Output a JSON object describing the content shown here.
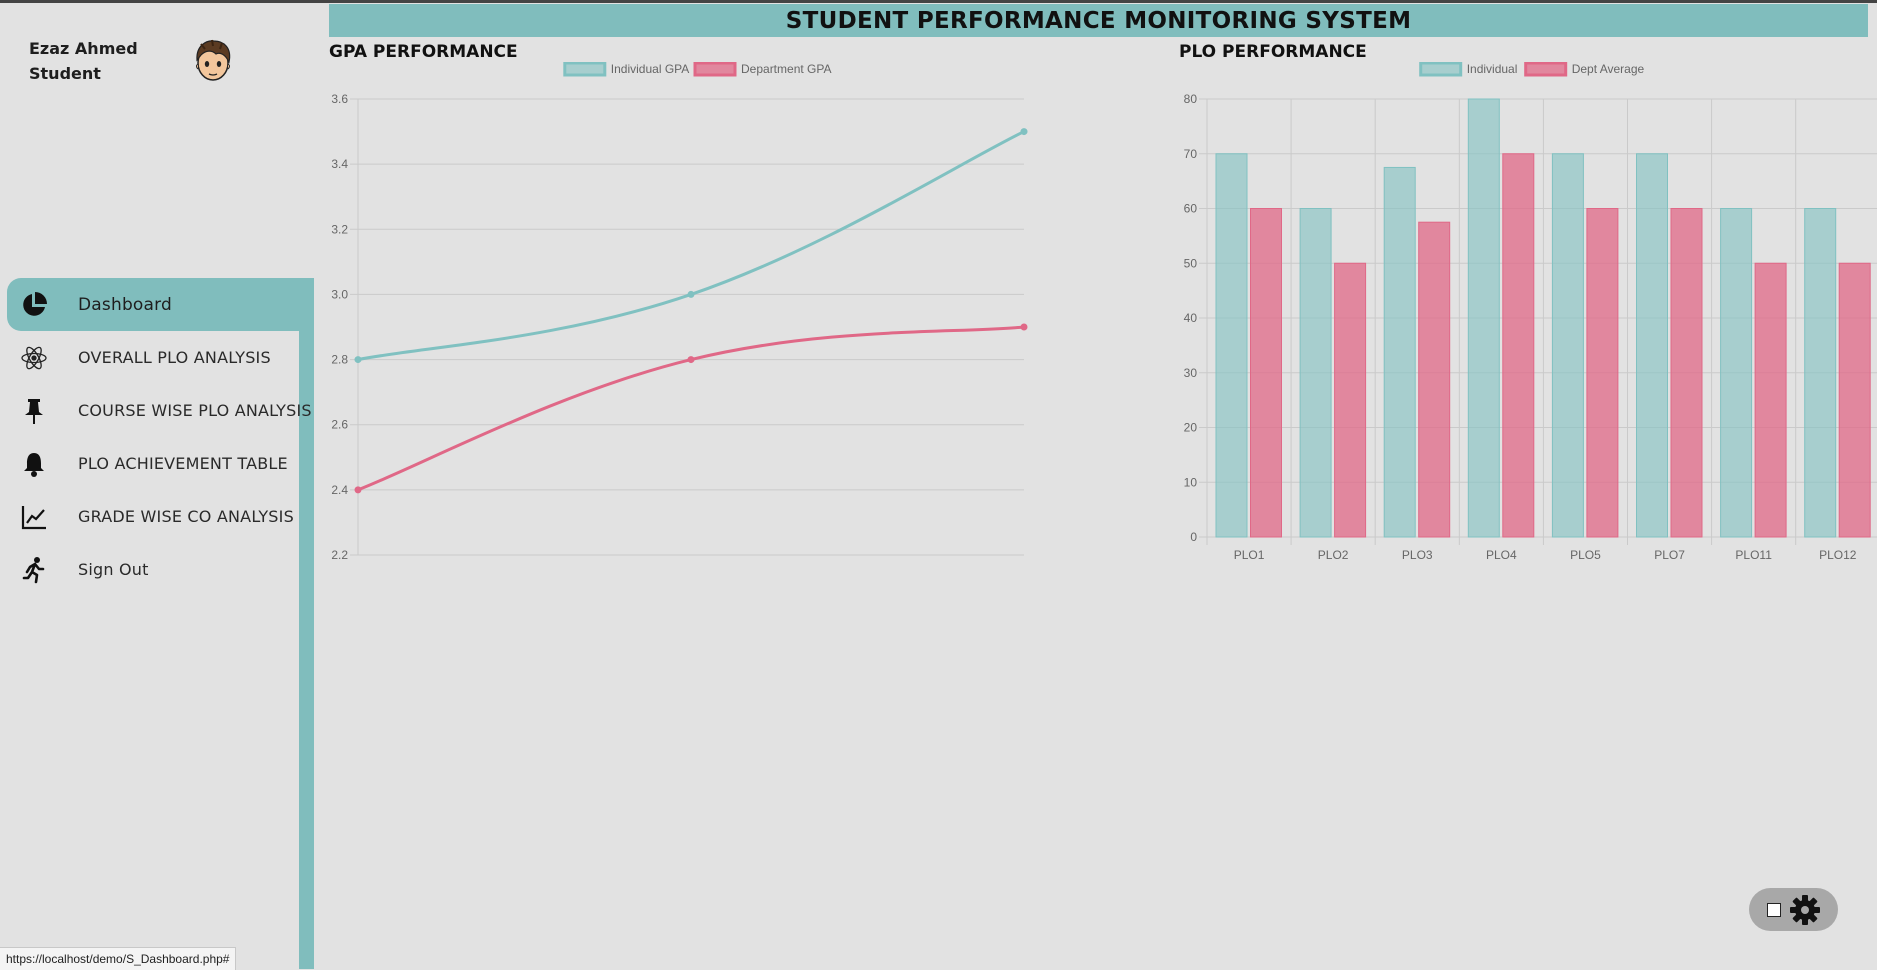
{
  "user": {
    "name": "Ezaz Ahmed",
    "role": "Student"
  },
  "header": {
    "title": "STUDENT PERFORMANCE MONITORING SYSTEM"
  },
  "sidebar": {
    "items": [
      {
        "label": "Dashboard",
        "icon": "pie-chart-icon",
        "active": true
      },
      {
        "label": "OVERALL PLO ANALYSIS",
        "icon": "atom-icon"
      },
      {
        "label": "COURSE WISE PLO ANALYSIS",
        "icon": "pushpin-icon"
      },
      {
        "label": "PLO ACHIEVEMENT TABLE",
        "icon": "bell-icon"
      },
      {
        "label": "GRADE WISE CO ANALYSIS",
        "icon": "line-chart-icon"
      },
      {
        "label": "Sign Out",
        "icon": "running-person-icon"
      }
    ]
  },
  "sections": {
    "gpa_title": "GPA PERFORMANCE",
    "plo_title": "PLO PERFORMANCE"
  },
  "status_bar": {
    "url": "https://localhost/demo/S_Dashboard.php#"
  },
  "colors": {
    "accent": "#80bdbd",
    "individual": "#80c1c1",
    "department": "#e06887",
    "background": "#e2e2e2"
  },
  "chart_data": [
    {
      "type": "line",
      "x": [
        "",
        "",
        ""
      ],
      "series": [
        {
          "name": "Individual GPA",
          "values": [
            2.8,
            3.0,
            3.5
          ]
        },
        {
          "name": "Department GPA",
          "values": [
            2.4,
            2.8,
            2.9
          ]
        }
      ],
      "ylim": [
        2.2,
        3.6
      ],
      "yticks": [
        "3.6",
        "3.4",
        "3.2",
        "3.0",
        "2.8",
        "2.6",
        "2.4",
        "2.2"
      ],
      "legend": "top-center",
      "grid": true
    },
    {
      "type": "bar",
      "categories": [
        "PLO1",
        "PLO2",
        "PLO3",
        "PLO4",
        "PLO5",
        "PLO7",
        "PLO11",
        "PLO12"
      ],
      "series": [
        {
          "name": "Individual",
          "values": [
            70,
            60,
            67.5,
            80,
            70,
            70,
            60,
            60
          ]
        },
        {
          "name": "Dept Average",
          "values": [
            60,
            50,
            57.5,
            70,
            60,
            60,
            50,
            50
          ]
        }
      ],
      "ylim": [
        0,
        80
      ],
      "yticks": [
        "80",
        "70",
        "60",
        "50",
        "40",
        "30",
        "20",
        "10",
        "0"
      ],
      "legend": "top-center",
      "grid": true
    }
  ]
}
